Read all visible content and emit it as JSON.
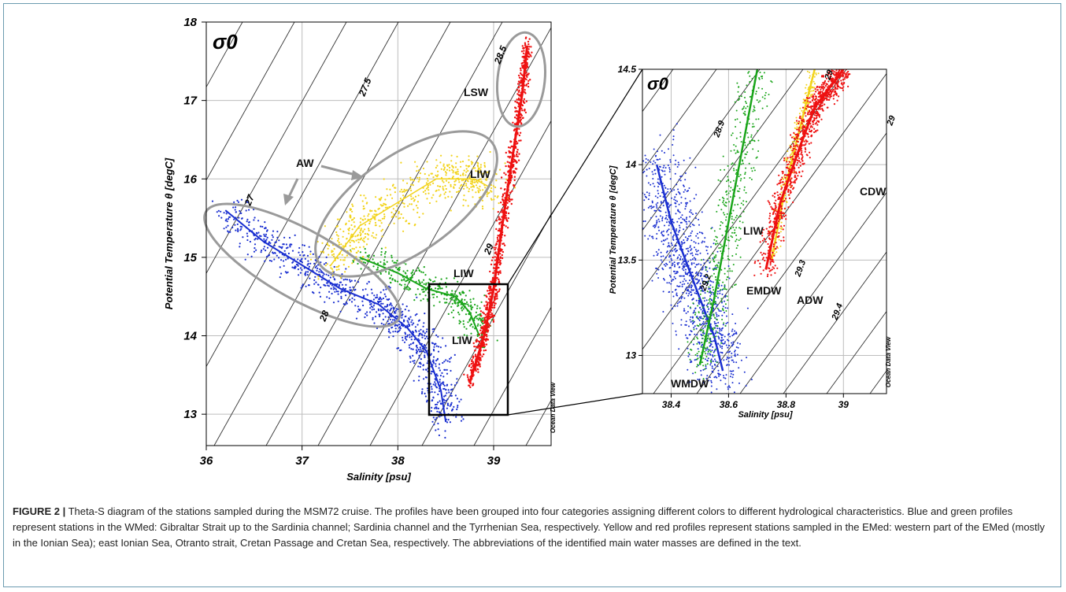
{
  "caption": {
    "label": "FIGURE 2 |",
    "text": " Theta-S diagram of the stations sampled during the MSM72 cruise. The profiles have been grouped into four categories assigning different colors to different hydrological characteristics. Blue and green profiles represent stations in the WMed: Gibraltar Strait up to the Sardinia channel; Sardinia channel and the Tyrrhenian Sea, respectively. Yellow and red profiles represent stations sampled in the EMed: western part of the EMed (mostly in the Ionian Sea); east Ionian Sea, Otranto strait, Cretan Passage and Cretan Sea, respectively. The abbreviations of the identified main water masses are defined in the text."
  },
  "colors": {
    "wmed_blue": "#1a2fd0",
    "tyrrhenian_green": "#1aa51a",
    "ionian_yellow": "#f2d31b",
    "emed_red": "#ee1111",
    "ellipse_gray": "#9a9a9a",
    "isopycnal": "#333333",
    "grid": "#bdbdbd"
  },
  "chart_data": [
    {
      "type": "scatter",
      "title": "σ0",
      "xlabel": "Salinity [psu]",
      "ylabel": "Potential Temperature θ [degC]",
      "watermark": "Ocean Data View",
      "xlim": [
        36,
        39.6
      ],
      "ylim": [
        12.6,
        18
      ],
      "xticks": [
        "36",
        "37",
        "38",
        "39"
      ],
      "yticks": [
        "13",
        "14",
        "15",
        "16",
        "17",
        "18"
      ],
      "grid": true,
      "isopycnal_labels": [
        "27",
        "27.5",
        "28",
        "28.5",
        "29"
      ],
      "water_masses": [
        "AW",
        "LIW",
        "LIW",
        "LIW",
        "LSW"
      ],
      "series": [
        {
          "color": "blue",
          "x": [
            36.2,
            36.6,
            37.0,
            37.4,
            37.8,
            38.1,
            38.3,
            38.45,
            38.5
          ],
          "y": [
            15.6,
            15.2,
            14.9,
            14.6,
            14.4,
            14.1,
            13.8,
            13.3,
            12.9
          ]
        },
        {
          "color": "green",
          "x": [
            37.6,
            38.0,
            38.3,
            38.6,
            38.75,
            38.85
          ],
          "y": [
            15.0,
            14.8,
            14.6,
            14.5,
            14.3,
            14.0
          ]
        },
        {
          "color": "yellow",
          "x": [
            37.3,
            37.6,
            38.0,
            38.4,
            38.8,
            38.95
          ],
          "y": [
            14.9,
            15.4,
            15.7,
            16.0,
            16.0,
            15.9
          ]
        },
        {
          "color": "red",
          "x": [
            38.75,
            38.9,
            39.0,
            39.1,
            39.2,
            39.3,
            39.35
          ],
          "y": [
            13.4,
            14.0,
            14.6,
            15.5,
            16.3,
            17.1,
            17.7
          ]
        }
      ]
    },
    {
      "type": "scatter",
      "title": "σ0",
      "xlabel": "Salinity [psu]",
      "ylabel": "Potential Temperature θ [degC]",
      "watermark": "Ocean Data View",
      "xlim": [
        38.3,
        39.15
      ],
      "ylim": [
        12.8,
        14.5
      ],
      "xticks": [
        "38.4",
        "38.6",
        "38.8",
        "39"
      ],
      "yticks": [
        "13",
        "13.5",
        "14",
        "14.5"
      ],
      "grid": true,
      "isopycnal_labels": [
        "28.9",
        "29",
        "29.2",
        "29.3",
        "29.4",
        "29"
      ],
      "water_masses": [
        "CDW",
        "LIW",
        "EMDW",
        "ADW",
        "WMDW"
      ],
      "series": [
        {
          "color": "blue",
          "x": [
            38.35,
            38.4,
            38.45,
            38.5,
            38.55,
            38.58
          ],
          "y": [
            14.0,
            13.7,
            13.5,
            13.3,
            13.1,
            12.92
          ]
        },
        {
          "color": "green",
          "x": [
            38.5,
            38.55,
            38.6,
            38.65,
            38.7
          ],
          "y": [
            12.95,
            13.3,
            13.7,
            14.1,
            14.5
          ]
        },
        {
          "color": "yellow",
          "x": [
            38.75,
            38.8,
            38.85,
            38.9
          ],
          "y": [
            13.5,
            13.9,
            14.2,
            14.5
          ]
        },
        {
          "color": "red",
          "x": [
            38.73,
            38.78,
            38.85,
            38.9,
            38.95,
            39.0
          ],
          "y": [
            13.45,
            13.8,
            14.1,
            14.3,
            14.4,
            14.5
          ]
        }
      ]
    }
  ]
}
